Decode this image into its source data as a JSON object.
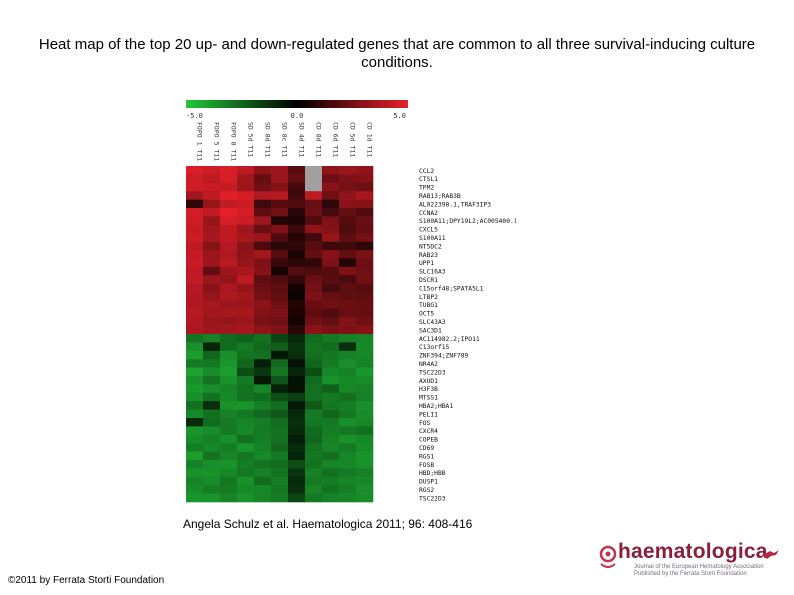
{
  "title": "Heat map of the top 20 up- and down-regulated genes that are common to all three survival-inducing culture conditions.",
  "citation": "Angela Schulz et al. Haematologica 2011; 96: 408-416",
  "copyright": "©2011 by Ferrata Storti Foundation",
  "logo": {
    "text": "haematologica",
    "subtitle": "Journal of the European Hematology Association Published by the Ferrata Storti Foundation"
  },
  "colors": {
    "low": "#22c83a",
    "mid": "#000000",
    "high": "#e8202a",
    "missing": "#a0a0a0"
  },
  "chart_data": {
    "type": "heatmap",
    "colorbar": {
      "min": -5.0,
      "mid": 0.0,
      "max": 5.0,
      "labels": [
        "-5.0",
        "0.0",
        "5.0"
      ]
    },
    "columns": [
      "FOPO 1 T11",
      "FOPO 5 T11",
      "FOPO 8 T11",
      "SD 5d T11",
      "SD 8d T11",
      "SD 8c T11",
      "SD 4d T11",
      "CD 8d T11",
      "CD 6d T11",
      "CD 5d T11",
      "CD 1d T11"
    ],
    "rows": [
      "CCL2",
      "CTSL1",
      "TPM2",
      "RAB13;RAB3B",
      "AL022398.1,TRAF3IP3",
      "CCNA2",
      "S100A11;DPY19L2;AC005400.1;AC007683.5",
      "CXCL5",
      "S100A11",
      "NT5DC2",
      "RAB23",
      "UPP1",
      "SLC16A3",
      "DSCR1",
      "C15orf48;SPATA5L1",
      "LTBP2",
      "TUBG1",
      "OCT5",
      "SLC43A3",
      "SAC3D1",
      "AC114982.2;IPO11",
      "C13orf15",
      "ZNF394;ZNF789",
      "NR4A2",
      "TSC22D3",
      "AXUD1",
      "H3F3B",
      "MTSS1",
      "HBA2;HBA1",
      "PELI1",
      "FOS",
      "CXCR4",
      "COPEB",
      "CD69",
      "RGS1",
      "FOSB",
      "HBD;HBB",
      "DUSP1",
      "RGS2",
      "TSC22D3"
    ],
    "values": [
      [
        4.6,
        4.2,
        4.6,
        3.8,
        2.6,
        3.0,
        1.4,
        null,
        2.6,
        2.9,
        2.6
      ],
      [
        4.2,
        3.8,
        4.5,
        3.1,
        1.6,
        2.9,
        1.6,
        null,
        1.8,
        2.2,
        2.4
      ],
      [
        4.4,
        4.1,
        4.0,
        3.0,
        1.9,
        2.4,
        1.0,
        null,
        2.5,
        2.0,
        1.8
      ],
      [
        3.1,
        3.8,
        4.8,
        4.4,
        3.5,
        3.6,
        0.9,
        3.8,
        1.9,
        2.6,
        3.2
      ],
      [
        0.6,
        2.8,
        3.9,
        4.2,
        0.9,
        1.4,
        1.2,
        1.7,
        0.6,
        2.5,
        2.4
      ],
      [
        4.4,
        3.9,
        4.9,
        4.4,
        1.5,
        1.9,
        0.5,
        1.8,
        1.0,
        1.6,
        1.2
      ],
      [
        4.3,
        2.8,
        4.5,
        4.2,
        3.0,
        0.4,
        0.3,
        1.2,
        2.2,
        1.3,
        1.8
      ],
      [
        4.1,
        3.1,
        3.8,
        3.0,
        1.7,
        2.2,
        0.8,
        2.6,
        2.3,
        1.2,
        1.6
      ],
      [
        4.2,
        3.2,
        3.8,
        3.2,
        2.9,
        1.2,
        0.4,
        0.9,
        2.8,
        1.5,
        2.0
      ],
      [
        3.8,
        2.4,
        3.6,
        2.5,
        1.1,
        0.5,
        0.6,
        1.4,
        0.8,
        0.9,
        0.6
      ],
      [
        4.0,
        2.9,
        3.4,
        2.6,
        3.1,
        1.3,
        0.3,
        1.6,
        2.4,
        1.6,
        2.1
      ],
      [
        4.1,
        3.0,
        3.7,
        2.8,
        2.2,
        0.8,
        0.5,
        0.6,
        2.2,
        0.4,
        1.8
      ],
      [
        3.8,
        1.6,
        3.0,
        3.2,
        2.4,
        0.2,
        1.3,
        1.2,
        1.4,
        2.2,
        1.9
      ],
      [
        3.9,
        3.0,
        2.7,
        3.8,
        1.5,
        1.2,
        0.7,
        1.8,
        1.4,
        1.1,
        1.9
      ],
      [
        3.6,
        2.5,
        3.3,
        2.8,
        1.8,
        1.5,
        0.2,
        2.0,
        1.0,
        1.5,
        1.4
      ],
      [
        3.5,
        2.8,
        3.4,
        3.1,
        2.0,
        1.6,
        0.1,
        2.2,
        1.7,
        1.5,
        1.5
      ],
      [
        3.4,
        3.2,
        3.0,
        2.9,
        2.6,
        1.9,
        0.4,
        1.7,
        1.9,
        1.8,
        1.7
      ],
      [
        3.6,
        3.1,
        3.2,
        3.2,
        2.3,
        2.2,
        0.3,
        1.5,
        1.2,
        1.7,
        1.6
      ],
      [
        3.5,
        2.9,
        2.8,
        2.9,
        2.1,
        1.9,
        0.2,
        1.9,
        1.6,
        2.3,
        1.9
      ],
      [
        3.3,
        3.0,
        3.1,
        3.2,
        2.6,
        2.3,
        0.5,
        2.5,
        2.1,
        2.2,
        2.4
      ],
      [
        -2.4,
        -2.8,
        -2.2,
        -1.9,
        -2.3,
        -1.2,
        -0.6,
        -2.2,
        -2.6,
        -2.8,
        -2.9
      ],
      [
        -3.2,
        -0.5,
        -2.2,
        -2.6,
        -2.1,
        -1.8,
        -0.8,
        -2.4,
        -2.2,
        -0.7,
        -3.0
      ],
      [
        -3.6,
        -2.0,
        -3.2,
        -2.4,
        -2.3,
        -0.3,
        -0.7,
        -2.3,
        -2.5,
        -2.8,
        -3.0
      ],
      [
        -2.6,
        -2.5,
        -3.4,
        -2.0,
        -0.4,
        -2.1,
        -0.2,
        -2.0,
        -2.6,
        -3.2,
        -2.8
      ],
      [
        -3.8,
        -3.1,
        -3.6,
        -1.4,
        -0.9,
        -2.5,
        -0.5,
        -1.4,
        -3.0,
        -2.8,
        -3.4
      ],
      [
        -3.2,
        -2.4,
        -3.3,
        -2.6,
        -0.3,
        -1.6,
        -0.2,
        -2.2,
        -3.3,
        -3.0,
        -3.1
      ],
      [
        -3.5,
        -3.2,
        -2.9,
        -2.4,
        -3.0,
        -0.4,
        -0.2,
        -2.3,
        -1.9,
        -3.0,
        -2.8
      ],
      [
        -3.2,
        -2.3,
        -3.0,
        -2.3,
        -2.2,
        -1.4,
        -1.1,
        -2.3,
        -2.6,
        -2.3,
        -2.8
      ],
      [
        -2.3,
        -0.7,
        -3.3,
        -3.4,
        -2.7,
        -2.2,
        -0.3,
        -1.7,
        -2.5,
        -2.7,
        -3.2
      ],
      [
        -3.0,
        -2.3,
        -2.8,
        -2.5,
        -2.1,
        -1.7,
        -0.6,
        -2.6,
        -2.0,
        -2.5,
        -3.1
      ],
      [
        -0.6,
        -2.2,
        -2.6,
        -2.9,
        -2.7,
        -2.2,
        -0.7,
        -2.5,
        -2.6,
        -3.2,
        -3.0
      ],
      [
        -3.4,
        -3.1,
        -2.6,
        -3.0,
        -2.6,
        -2.4,
        -0.6,
        -2.2,
        -2.7,
        -2.5,
        -2.3
      ],
      [
        -3.1,
        -2.8,
        -3.2,
        -2.3,
        -2.7,
        -2.3,
        -0.4,
        -2.0,
        -2.8,
        -3.3,
        -3.0
      ],
      [
        -2.7,
        -3.0,
        -2.7,
        -3.4,
        -2.8,
        -2.0,
        -0.6,
        -2.4,
        -2.9,
        -2.6,
        -3.1
      ],
      [
        -3.6,
        -2.4,
        -2.9,
        -2.5,
        -3.0,
        -2.6,
        -0.5,
        -2.5,
        -2.3,
        -2.9,
        -3.3
      ],
      [
        -2.8,
        -3.2,
        -3.3,
        -2.7,
        -2.4,
        -2.2,
        -1.4,
        -2.4,
        -2.9,
        -3.0,
        -3.3
      ],
      [
        -3.3,
        -3.3,
        -3.0,
        -2.5,
        -2.8,
        -2.4,
        -0.8,
        -2.8,
        -2.3,
        -2.6,
        -2.8
      ],
      [
        -2.9,
        -3.1,
        -2.5,
        -3.2,
        -2.2,
        -2.7,
        -0.6,
        -2.6,
        -2.7,
        -2.9,
        -3.0
      ],
      [
        -3.1,
        -2.7,
        -2.6,
        -3.0,
        -3.0,
        -2.5,
        -0.7,
        -2.9,
        -2.4,
        -2.7,
        -3.2
      ],
      [
        -3.4,
        -3.3,
        -2.9,
        -3.3,
        -2.9,
        -2.6,
        -1.2,
        -2.5,
        -2.8,
        -2.9,
        -3.1
      ]
    ]
  }
}
